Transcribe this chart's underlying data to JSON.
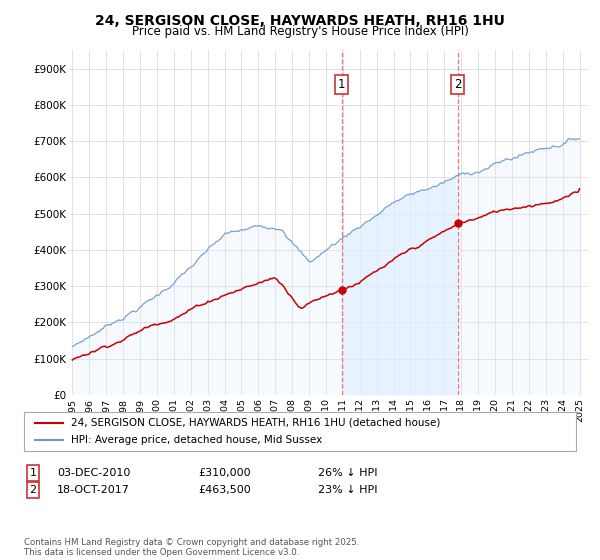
{
  "title": "24, SERGISON CLOSE, HAYWARDS HEATH, RH16 1HU",
  "subtitle": "Price paid vs. HM Land Registry's House Price Index (HPI)",
  "legend_label_red": "24, SERGISON CLOSE, HAYWARDS HEATH, RH16 1HU (detached house)",
  "legend_label_blue": "HPI: Average price, detached house, Mid Sussex",
  "annotation1_date": "03-DEC-2010",
  "annotation1_price": "£310,000",
  "annotation1_hpi": "26% ↓ HPI",
  "annotation2_date": "18-OCT-2017",
  "annotation2_price": "£463,500",
  "annotation2_hpi": "23% ↓ HPI",
  "footer": "Contains HM Land Registry data © Crown copyright and database right 2025.\nThis data is licensed under the Open Government Licence v3.0.",
  "red_color": "#cc0000",
  "blue_color": "#6699cc",
  "blue_fill": "#ddeeff",
  "vline_color": "#ee6666",
  "ylim_min": 0,
  "ylim_max": 950000,
  "sale1_year": 2010.92,
  "sale1_value": 310000,
  "sale2_year": 2017.79,
  "sale2_value": 463500,
  "yticks": [
    0,
    100000,
    200000,
    300000,
    400000,
    500000,
    600000,
    700000,
    800000,
    900000
  ],
  "ytick_labels": [
    "£0",
    "£100K",
    "£200K",
    "£300K",
    "£400K",
    "£500K",
    "£600K",
    "£700K",
    "£800K",
    "£900K"
  ]
}
